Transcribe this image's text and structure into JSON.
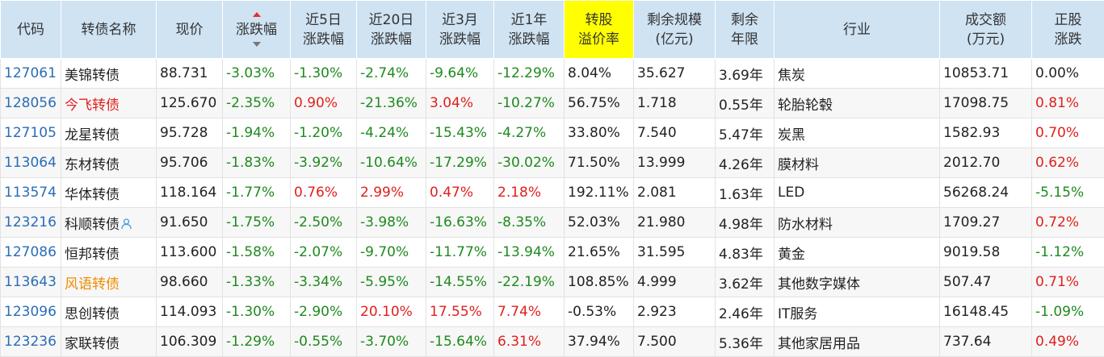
{
  "colors": {
    "up": "#e0201c",
    "down": "#1e8a1e",
    "code": "#2a6db5",
    "header_bg": "#cfe3f3",
    "highlight": "#ffff00",
    "name_orange": "#f08c00"
  },
  "headers": [
    {
      "key": "code",
      "lines": [
        "代码"
      ]
    },
    {
      "key": "name",
      "lines": [
        "转债名称"
      ]
    },
    {
      "key": "price",
      "lines": [
        "现价"
      ]
    },
    {
      "key": "change",
      "lines": [
        "涨跌幅"
      ],
      "sorted": true
    },
    {
      "key": "chg5d",
      "lines": [
        "近5日",
        "涨跌幅"
      ]
    },
    {
      "key": "chg20d",
      "lines": [
        "近20日",
        "涨跌幅"
      ]
    },
    {
      "key": "chg3m",
      "lines": [
        "近3月",
        "涨跌幅"
      ]
    },
    {
      "key": "chg1y",
      "lines": [
        "近1年",
        "涨跌幅"
      ]
    },
    {
      "key": "premium",
      "lines": [
        "转股",
        "溢价率"
      ],
      "highlight": true
    },
    {
      "key": "scale",
      "lines": [
        "剩余规模",
        "(亿元)"
      ]
    },
    {
      "key": "years",
      "lines": [
        "剩余",
        "年限"
      ]
    },
    {
      "key": "industry",
      "lines": [
        "行业"
      ]
    },
    {
      "key": "turnover",
      "lines": [
        "成交额",
        "(万元)"
      ]
    },
    {
      "key": "stock_chg",
      "lines": [
        "正股",
        "涨跌"
      ]
    }
  ],
  "rows": [
    {
      "code": "127061",
      "name": "美锦转债",
      "name_color": "normal",
      "icon": false,
      "price": "88.731",
      "change": "-3.03%",
      "chg5d": "-1.30%",
      "chg20d": "-2.74%",
      "chg3m": "-9.64%",
      "chg1y": "-12.29%",
      "premium": "8.04%",
      "scale": "35.627",
      "years": "3.69年",
      "industry": "焦炭",
      "turnover": "10853.71",
      "stock_chg": "0.00%"
    },
    {
      "code": "128056",
      "name": "今飞转债",
      "name_color": "red",
      "icon": false,
      "price": "125.670",
      "change": "-2.35%",
      "chg5d": "0.90%",
      "chg20d": "-21.36%",
      "chg3m": "3.04%",
      "chg1y": "-10.27%",
      "premium": "56.75%",
      "scale": "1.718",
      "years": "0.55年",
      "industry": "轮胎轮毂",
      "turnover": "17098.75",
      "stock_chg": "0.81%"
    },
    {
      "code": "127105",
      "name": "龙星转债",
      "name_color": "normal",
      "icon": false,
      "price": "95.728",
      "change": "-1.94%",
      "chg5d": "-1.20%",
      "chg20d": "-4.24%",
      "chg3m": "-15.43%",
      "chg1y": "-4.27%",
      "premium": "33.80%",
      "scale": "7.540",
      "years": "5.47年",
      "industry": "炭黑",
      "turnover": "1582.93",
      "stock_chg": "0.70%"
    },
    {
      "code": "113064",
      "name": "东材转债",
      "name_color": "normal",
      "icon": false,
      "price": "95.706",
      "change": "-1.83%",
      "chg5d": "-3.92%",
      "chg20d": "-10.64%",
      "chg3m": "-17.29%",
      "chg1y": "-30.02%",
      "premium": "71.50%",
      "scale": "13.999",
      "years": "4.26年",
      "industry": "膜材料",
      "turnover": "2012.70",
      "stock_chg": "0.62%"
    },
    {
      "code": "113574",
      "name": "华体转债",
      "name_color": "normal",
      "icon": false,
      "price": "118.164",
      "change": "-1.77%",
      "chg5d": "0.76%",
      "chg20d": "2.99%",
      "chg3m": "0.47%",
      "chg1y": "2.18%",
      "premium": "192.11%",
      "scale": "2.081",
      "years": "1.63年",
      "industry": "LED",
      "turnover": "56268.24",
      "stock_chg": "-5.15%"
    },
    {
      "code": "123216",
      "name": "科顺转债",
      "name_color": "normal",
      "icon": true,
      "price": "91.650",
      "change": "-1.75%",
      "chg5d": "-2.50%",
      "chg20d": "-3.98%",
      "chg3m": "-16.63%",
      "chg1y": "-8.35%",
      "premium": "52.03%",
      "scale": "21.980",
      "years": "4.98年",
      "industry": "防水材料",
      "turnover": "1709.27",
      "stock_chg": "0.72%"
    },
    {
      "code": "127086",
      "name": "恒邦转债",
      "name_color": "normal",
      "icon": false,
      "price": "113.600",
      "change": "-1.58%",
      "chg5d": "-2.07%",
      "chg20d": "-9.70%",
      "chg3m": "-11.77%",
      "chg1y": "-13.94%",
      "premium": "21.65%",
      "scale": "31.595",
      "years": "4.83年",
      "industry": "黄金",
      "turnover": "9019.58",
      "stock_chg": "-1.12%"
    },
    {
      "code": "113643",
      "name": "风语转债",
      "name_color": "orange",
      "icon": false,
      "price": "98.660",
      "change": "-1.33%",
      "chg5d": "-3.34%",
      "chg20d": "-5.95%",
      "chg3m": "-14.55%",
      "chg1y": "-22.19%",
      "premium": "108.85%",
      "scale": "4.999",
      "years": "3.62年",
      "industry": "其他数字媒体",
      "turnover": "507.47",
      "stock_chg": "0.71%"
    },
    {
      "code": "123096",
      "name": "思创转债",
      "name_color": "normal",
      "icon": false,
      "price": "114.093",
      "change": "-1.30%",
      "chg5d": "-2.90%",
      "chg20d": "20.10%",
      "chg3m": "17.55%",
      "chg1y": "7.74%",
      "premium": "-0.53%",
      "scale": "2.923",
      "years": "2.46年",
      "industry": "IT服务",
      "turnover": "16148.45",
      "stock_chg": "-1.09%"
    },
    {
      "code": "123236",
      "name": "家联转债",
      "name_color": "normal",
      "icon": false,
      "price": "106.309",
      "change": "-1.29%",
      "chg5d": "-0.55%",
      "chg20d": "-3.70%",
      "chg3m": "-15.64%",
      "chg1y": "6.31%",
      "premium": "37.94%",
      "scale": "7.500",
      "years": "5.36年",
      "industry": "其他家居用品",
      "turnover": "737.64",
      "stock_chg": "0.49%"
    }
  ]
}
